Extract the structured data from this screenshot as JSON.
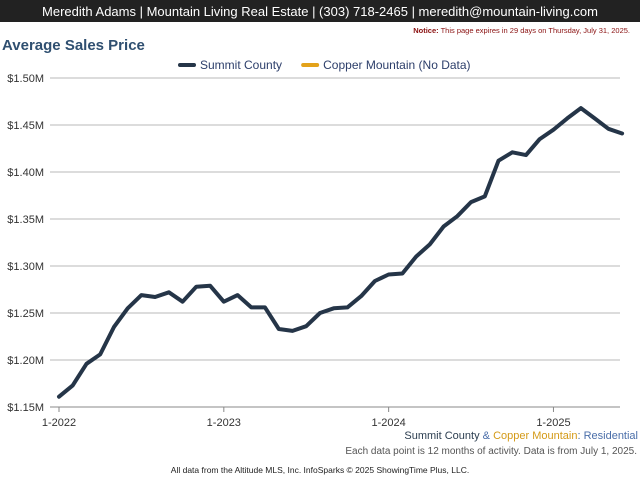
{
  "header": {
    "contact": "Meredith Adams | Mountain Living Real Estate | (303) 718-2465 | meredith@mountain-living.com",
    "notice_label": "Notice:",
    "notice_text": " This page expires in 29 days on Thursday, July 31, 2025."
  },
  "footer": {
    "series_primary": "Summit County",
    "amp": " & ",
    "series_secondary": "Copper Mountain",
    "sep": ": ",
    "property_type": "Residential",
    "note": "Each data point is 12 months of activity. Data is from July 1, 2025.",
    "credits": "All data from the Altitude MLS, Inc. InfoSparks © 2025 ShowingTime Plus, LLC."
  },
  "colors": {
    "summit": "#253548",
    "copper": "#e3a21a",
    "grid": "#b8b8b8",
    "axis": "#888888"
  },
  "chart_data": {
    "type": "line",
    "title": "Average Sales Price",
    "y_tick_labels": [
      "$1.15M",
      "$1.20M",
      "$1.25M",
      "$1.30M",
      "$1.35M",
      "$1.40M",
      "$1.45M",
      "$1.50M"
    ],
    "y_tick_values": [
      1.15,
      1.2,
      1.25,
      1.3,
      1.35,
      1.4,
      1.45,
      1.5
    ],
    "ylim": [
      1.15,
      1.5
    ],
    "x_tick_labels": [
      "1-2022",
      "1-2023",
      "1-2024",
      "1-2025"
    ],
    "x_tick_values": [
      0,
      12,
      24,
      36
    ],
    "xlim": [
      0,
      41.5
    ],
    "grid": true,
    "legend_position": "top-center",
    "series": [
      {
        "name": "Summit County",
        "color": "#253548",
        "x": [
          0,
          1,
          2,
          3,
          4,
          5,
          6,
          7,
          8,
          9,
          10,
          11,
          12,
          13,
          14,
          15,
          16,
          17,
          18,
          19,
          20,
          21,
          22,
          23,
          24,
          25,
          26,
          27,
          28,
          29,
          30,
          31,
          32,
          33,
          34,
          35,
          36,
          37,
          38,
          39,
          40,
          41
        ],
        "values": [
          1.161,
          1.173,
          1.196,
          1.206,
          1.235,
          1.255,
          1.269,
          1.267,
          1.272,
          1.262,
          1.278,
          1.279,
          1.262,
          1.269,
          1.256,
          1.256,
          1.233,
          1.231,
          1.236,
          1.25,
          1.255,
          1.256,
          1.268,
          1.284,
          1.291,
          1.292,
          1.31,
          1.323,
          1.342,
          1.353,
          1.368,
          1.374,
          1.412,
          1.421,
          1.418,
          1.435,
          1.445,
          1.457,
          1.468,
          1.457,
          1.446,
          1.441
        ]
      },
      {
        "name": "Copper Mountain (No Data)",
        "color": "#e3a21a",
        "x": [],
        "values": []
      }
    ]
  }
}
